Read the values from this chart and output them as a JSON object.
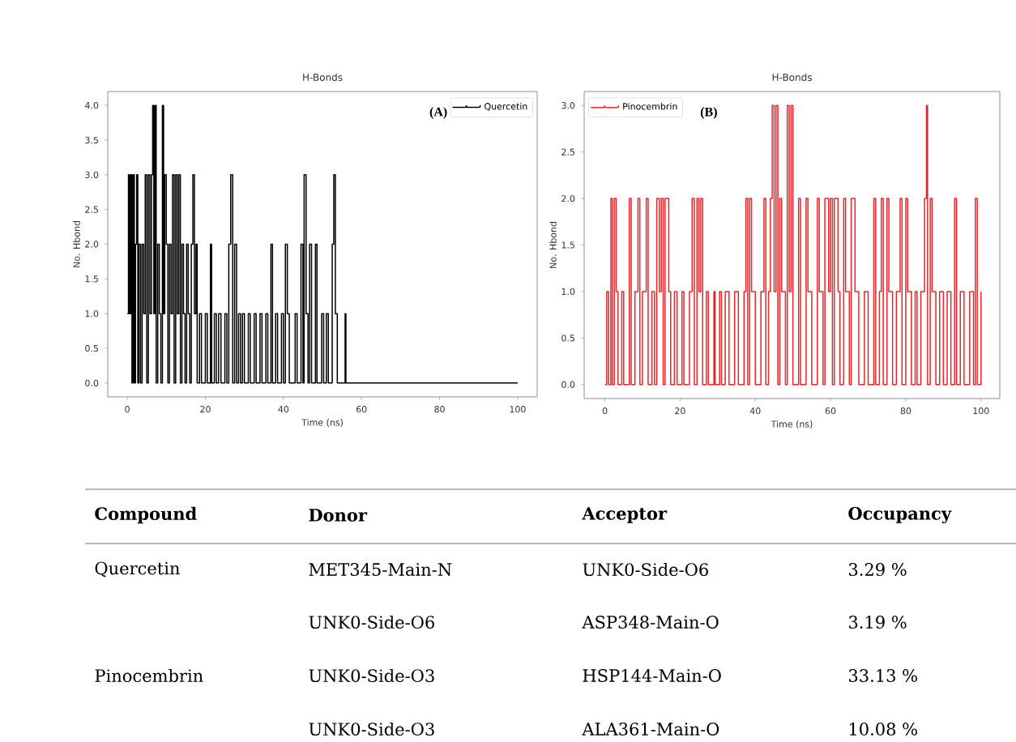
{
  "chart_data": [
    {
      "type": "step",
      "title": "H-Bonds",
      "xlabel": "Time (ns)",
      "ylabel": "No. Hbond",
      "annotations": [
        "(A)"
      ],
      "legend": "top right",
      "grid": false,
      "line_style": "solid",
      "xlim": [
        -5,
        105
      ],
      "ylim": [
        -0.2,
        4.2
      ],
      "xticks": [
        0,
        20,
        40,
        60,
        80,
        100
      ],
      "yticks": [
        {
          "value": 0,
          "label": "0.0"
        },
        0.5,
        {
          "value": 1,
          "label": "1.0"
        },
        1.5,
        {
          "value": 2,
          "label": "2.0"
        },
        2.5,
        {
          "value": 3,
          "label": "3.0"
        },
        3.5,
        {
          "value": 4,
          "label": "4.0"
        }
      ],
      "series": [
        {
          "name": "Quercetin",
          "color": "#000000",
          "x": [
            0,
            0.3,
            0.6,
            0.9,
            1.2,
            1.5,
            1.8,
            2.1,
            2.4,
            2.7,
            3.0,
            3.4,
            3.8,
            4.2,
            4.6,
            5.0,
            5.4,
            5.8,
            6.2,
            6.5,
            6.8,
            7.1,
            7.4,
            7.8,
            8.2,
            8.6,
            9.0,
            9.3,
            9.6,
            10.0,
            10.4,
            10.8,
            11.2,
            11.6,
            12.0,
            12.4,
            12.8,
            13.2,
            13.6,
            14.0,
            14.4,
            14.8,
            15.2,
            15.6,
            16.0,
            16.4,
            16.8,
            17.2,
            17.6,
            17.9,
            18.5,
            19,
            20,
            20.5,
            21.3,
            21.6,
            22.3,
            22.8,
            23.4,
            24,
            25,
            25.5,
            26,
            26.5,
            27,
            27.5,
            28,
            28.5,
            29,
            29.5,
            30,
            31,
            31.5,
            32.5,
            33,
            34,
            34.5,
            35.5,
            36,
            36.8,
            37.2,
            38,
            38.5,
            39.5,
            40,
            40.5,
            41,
            41.5,
            43,
            43.5,
            44.5,
            45,
            45.3,
            45.8,
            46.3,
            46.7,
            47.2,
            48.2,
            48.6,
            49.8,
            50.3,
            51,
            51.5,
            52.5,
            52.9,
            53.3,
            53.8,
            55.8,
            56.0,
            100
          ],
          "values": [
            1,
            3,
            1,
            3,
            0,
            3,
            0,
            2,
            3,
            0,
            2,
            0,
            2,
            1,
            3,
            0,
            3,
            1,
            3,
            4,
            1,
            4,
            0,
            2,
            1,
            0,
            4,
            1,
            3,
            2,
            0,
            2,
            1,
            3,
            0,
            3,
            1,
            3,
            0,
            2,
            1,
            0,
            2,
            1,
            0,
            2,
            3,
            1,
            2,
            0,
            1,
            0,
            1,
            0,
            2,
            0,
            1,
            0,
            1,
            0,
            1,
            0,
            2,
            3,
            0,
            2,
            0,
            1,
            0,
            1,
            0,
            1,
            0,
            1,
            0,
            1,
            0,
            1,
            0,
            2,
            0,
            1,
            0,
            1,
            0,
            2,
            1,
            0,
            1,
            0,
            2,
            0,
            3,
            1,
            0,
            2,
            0,
            2,
            0,
            1,
            0,
            1,
            0,
            2,
            3,
            1,
            0,
            1,
            0,
            0
          ]
        }
      ]
    },
    {
      "type": "step",
      "title": "H-Bonds",
      "xlabel": "Time (ns)",
      "ylabel": "No. Hbond",
      "annotations": [
        "(B)"
      ],
      "legend": "top left",
      "grid": false,
      "line_style": "solid",
      "xlim": [
        -5.5,
        105
      ],
      "ylim": [
        -0.15,
        3.15
      ],
      "xticks": [
        0,
        20,
        40,
        60,
        80,
        100
      ],
      "yticks": [
        {
          "value": 0,
          "label": "0.0"
        },
        0.5,
        {
          "value": 1,
          "label": "1.0"
        },
        1.5,
        {
          "value": 2,
          "label": "2.0"
        },
        2.5,
        {
          "value": 3,
          "label": "3.0"
        }
      ],
      "series": [
        {
          "name": "Pinocembrin",
          "color": "#e8262a",
          "x": [
            0,
            0.5,
            1,
            1.6,
            2,
            2.5,
            3,
            3.5,
            4.5,
            5,
            6.5,
            7,
            8,
            8.8,
            9.3,
            10,
            11,
            11.5,
            12.5,
            13.2,
            13.8,
            14.5,
            15,
            15.5,
            16,
            17,
            17.5,
            18.5,
            19.2,
            20.5,
            21,
            22.5,
            23.2,
            23.8,
            24.5,
            25,
            25.5,
            26,
            27,
            27.5,
            29,
            29.3,
            30.5,
            31,
            32,
            33,
            34.5,
            35.5,
            37,
            37.5,
            38,
            38.5,
            39,
            40,
            41.5,
            42.3,
            42.8,
            43.5,
            44,
            44.5,
            45,
            45.5,
            46,
            46.5,
            47,
            48,
            48.5,
            49,
            49.5,
            50,
            51.5,
            52,
            53.5,
            54,
            55,
            56.5,
            57,
            58,
            58.5,
            59.5,
            60,
            60.5,
            61,
            62,
            62.5,
            63.5,
            64,
            65,
            65.5,
            66.5,
            67.5,
            69,
            70,
            71.5,
            72,
            73,
            73.5,
            74,
            75,
            75.5,
            76.5,
            77.5,
            78.5,
            79,
            80,
            80.5,
            81.5,
            82.5,
            83,
            84,
            85,
            85.5,
            85.8,
            86.5,
            87,
            88,
            89,
            90,
            91,
            92,
            93,
            93.5,
            94.5,
            95.5,
            97,
            98,
            98.5,
            99,
            100
          ],
          "values": [
            0,
            1,
            0,
            2,
            0,
            2,
            1,
            0,
            1,
            0,
            2,
            0,
            1,
            2,
            0,
            1,
            2,
            0,
            1,
            0,
            2,
            1,
            2,
            0,
            2,
            1,
            0,
            1,
            0,
            1,
            0,
            1,
            2,
            0,
            2,
            1,
            2,
            0,
            1,
            0,
            1,
            0,
            1,
            0,
            1,
            0,
            1,
            0,
            1,
            2,
            0,
            2,
            1,
            0,
            1,
            2,
            0,
            1,
            2,
            3,
            1,
            3,
            0,
            2,
            1,
            0,
            3,
            1,
            3,
            0,
            2,
            0,
            2,
            1,
            0,
            2,
            1,
            0,
            2,
            1,
            2,
            0,
            2,
            1,
            0,
            2,
            1,
            0,
            2,
            1,
            0,
            1,
            0,
            2,
            0,
            1,
            2,
            0,
            2,
            1,
            0,
            1,
            2,
            0,
            2,
            1,
            0,
            1,
            0,
            1,
            2,
            3,
            0,
            2,
            1,
            0,
            1,
            0,
            1,
            0,
            2,
            0,
            1,
            0,
            1,
            0,
            2,
            0,
            1
          ]
        }
      ]
    },
    {
      "type": "other",
      "categories": [
        "Compound",
        "Donor",
        "Acceptor",
        "Occupancy"
      ],
      "cell_labels": [
        [
          "Quercetin",
          "MET345-Main-N",
          "UNK0-Side-O6",
          "3.29 %"
        ],
        [
          null,
          "UNK0-Side-O6",
          "ASP348-Main-O",
          "3.19 %"
        ],
        [
          "Pinocembrin",
          "UNK0-Side-O3",
          "HSP144-Main-O",
          "33.13 %"
        ],
        [
          null,
          "UNK0-Side-O3",
          "ALA361-Main-O",
          "10.08 %"
        ]
      ]
    }
  ]
}
